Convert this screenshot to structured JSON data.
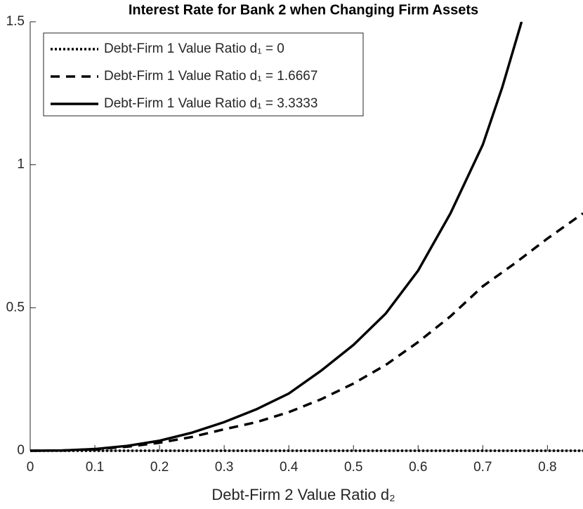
{
  "chart_data": {
    "type": "line",
    "title": "Interest Rate for Bank 2 when Changing Firm Assets",
    "x_label": "Debt-Firm 2 Value Ratio d₂",
    "xlim": [
      0,
      0.855
    ],
    "xticks": [
      0,
      0.1,
      0.2,
      0.3,
      0.4,
      0.5,
      0.6,
      0.7,
      0.8
    ],
    "ylim": [
      0,
      1.5
    ],
    "yticks": [
      0,
      0.5,
      1,
      1.5
    ],
    "legend": "upper-left",
    "series": [
      {
        "name": "Debt-Firm 1 Value Ratio d₁ = 0",
        "color": "#000000",
        "style": "dotted",
        "x": [
          0,
          0.1,
          0.2,
          0.3,
          0.4,
          0.5,
          0.6,
          0.7,
          0.8,
          0.855
        ],
        "values": [
          0,
          0,
          0,
          0,
          0,
          0,
          0,
          0,
          0,
          0
        ]
      },
      {
        "name": "Debt-Firm 1 Value Ratio d₁ = 1.6667",
        "color": "#000000",
        "style": "dashed",
        "x": [
          0,
          0.05,
          0.1,
          0.15,
          0.2,
          0.25,
          0.3,
          0.35,
          0.4,
          0.45,
          0.5,
          0.55,
          0.6,
          0.65,
          0.7,
          0.75,
          0.8,
          0.855
        ],
        "values": [
          0,
          0.001,
          0.005,
          0.014,
          0.028,
          0.048,
          0.075,
          0.1,
          0.135,
          0.18,
          0.235,
          0.3,
          0.38,
          0.47,
          0.575,
          0.656,
          0.742,
          0.83
        ]
      },
      {
        "name": "Debt-Firm 1 Value Ratio d₁ = 3.3333",
        "color": "#000000",
        "style": "solid",
        "x": [
          0,
          0.05,
          0.1,
          0.15,
          0.2,
          0.25,
          0.3,
          0.35,
          0.4,
          0.45,
          0.5,
          0.55,
          0.6,
          0.65,
          0.7,
          0.73,
          0.76
        ],
        "values": [
          0,
          0.001,
          0.006,
          0.017,
          0.035,
          0.063,
          0.1,
          0.145,
          0.2,
          0.28,
          0.37,
          0.48,
          0.63,
          0.83,
          1.07,
          1.27,
          1.5
        ]
      }
    ]
  }
}
